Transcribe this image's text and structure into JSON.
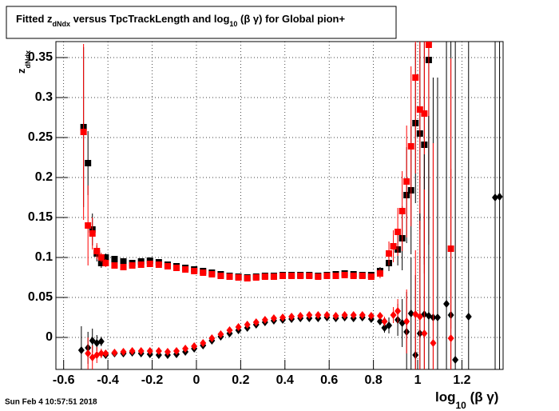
{
  "chart_data": {
    "type": "scatter",
    "title_parts": [
      "Fitted  z",
      "dNdx",
      "  versus TpcTrackLength and log",
      "10",
      " (β γ) for Global pion+"
    ],
    "y_label_parts": [
      "z",
      "dNdx"
    ],
    "x_label_parts": [
      "log",
      "10",
      " (β γ)"
    ],
    "timestamp": "Sun Feb  4 10:57:51 2018",
    "xlim": [
      -0.635,
      1.386
    ],
    "ylim": [
      -0.04,
      0.37
    ],
    "xticks": [
      -0.6,
      -0.4,
      -0.2,
      0,
      0.2,
      0.4,
      0.6,
      0.8,
      1,
      1.2
    ],
    "yticks": [
      0,
      0.05,
      0.1,
      0.15,
      0.2,
      0.25,
      0.3,
      0.35
    ],
    "grid": true,
    "series": [
      {
        "color": "#000000",
        "marker": "square",
        "x": [
          -0.51,
          -0.49,
          -0.47,
          -0.45,
          -0.43,
          -0.41,
          -0.37,
          -0.33,
          -0.29,
          -0.25,
          -0.21,
          -0.17,
          -0.13,
          -0.09,
          -0.05,
          -0.01,
          0.03,
          0.07,
          0.11,
          0.15,
          0.19,
          0.23,
          0.27,
          0.31,
          0.35,
          0.39,
          0.43,
          0.47,
          0.51,
          0.55,
          0.59,
          0.63,
          0.67,
          0.71,
          0.75,
          0.79,
          0.83,
          0.87,
          0.91,
          0.93,
          0.95,
          0.97,
          0.99,
          1.01,
          1.03,
          1.05
        ],
        "values": [
          0.263,
          0.218,
          0.135,
          0.105,
          0.093,
          0.1,
          0.098,
          0.095,
          0.093,
          0.095,
          0.096,
          0.094,
          0.091,
          0.089,
          0.087,
          0.085,
          0.083,
          0.081,
          0.079,
          0.077,
          0.076,
          0.075,
          0.076,
          0.077,
          0.077,
          0.078,
          0.078,
          0.078,
          0.078,
          0.077,
          0.078,
          0.079,
          0.08,
          0.079,
          0.078,
          0.078,
          0.083,
          0.093,
          0.11,
          0.124,
          0.178,
          0.184,
          0.268,
          0.255,
          0.241,
          0.347
        ],
        "errors": [
          0.1,
          0.04,
          0.02,
          0.01,
          0.006,
          0.005,
          0.004,
          0.003,
          0.003,
          0.003,
          0.003,
          0.002,
          0.002,
          0.002,
          0.002,
          0.002,
          0.002,
          0.002,
          0.002,
          0.002,
          0.002,
          0.002,
          0.002,
          0.002,
          0.002,
          0.002,
          0.002,
          0.002,
          0.002,
          0.002,
          0.002,
          0.002,
          0.002,
          0.002,
          0.003,
          0.004,
          0.005,
          0.01,
          0.02,
          0.04,
          0.06,
          0.08,
          0.1,
          0.12,
          0.15,
          0.2
        ]
      },
      {
        "color": "#ff0000",
        "marker": "square",
        "x": [
          -0.51,
          -0.49,
          -0.47,
          -0.45,
          -0.43,
          -0.41,
          -0.37,
          -0.33,
          -0.29,
          -0.25,
          -0.21,
          -0.17,
          -0.13,
          -0.09,
          -0.05,
          -0.01,
          0.03,
          0.07,
          0.11,
          0.15,
          0.19,
          0.23,
          0.27,
          0.31,
          0.35,
          0.39,
          0.43,
          0.47,
          0.51,
          0.55,
          0.59,
          0.63,
          0.67,
          0.71,
          0.75,
          0.79,
          0.83,
          0.87,
          0.89,
          0.91,
          0.93,
          0.95,
          0.97,
          0.99,
          1.01,
          1.03,
          1.05,
          1.15
        ],
        "values": [
          0.257,
          0.14,
          0.13,
          0.108,
          0.1,
          0.093,
          0.09,
          0.088,
          0.09,
          0.091,
          0.092,
          0.091,
          0.089,
          0.087,
          0.085,
          0.083,
          0.081,
          0.079,
          0.077,
          0.076,
          0.075,
          0.074,
          0.075,
          0.076,
          0.076,
          0.077,
          0.077,
          0.077,
          0.077,
          0.076,
          0.077,
          0.077,
          0.078,
          0.077,
          0.077,
          0.076,
          0.08,
          0.105,
          0.114,
          0.132,
          0.158,
          0.195,
          0.239,
          0.325,
          0.285,
          0.28,
          0.366,
          0.111
        ],
        "errors": [
          0.11,
          0.05,
          0.02,
          0.01,
          0.006,
          0.005,
          0.004,
          0.003,
          0.003,
          0.003,
          0.003,
          0.002,
          0.002,
          0.002,
          0.002,
          0.002,
          0.002,
          0.002,
          0.002,
          0.002,
          0.002,
          0.002,
          0.002,
          0.002,
          0.002,
          0.002,
          0.002,
          0.002,
          0.002,
          0.002,
          0.002,
          0.002,
          0.002,
          0.002,
          0.003,
          0.004,
          0.006,
          0.015,
          0.02,
          0.03,
          0.05,
          0.07,
          0.1,
          0.12,
          0.15,
          0.2,
          0.25,
          0.1
        ]
      },
      {
        "color": "#000000",
        "marker": "diamond",
        "x": [
          -0.52,
          -0.49,
          -0.47,
          -0.45,
          -0.43,
          -0.41,
          -0.37,
          -0.33,
          -0.29,
          -0.25,
          -0.21,
          -0.17,
          -0.13,
          -0.09,
          -0.05,
          -0.01,
          0.03,
          0.07,
          0.11,
          0.15,
          0.19,
          0.23,
          0.27,
          0.31,
          0.35,
          0.39,
          0.43,
          0.47,
          0.51,
          0.55,
          0.59,
          0.63,
          0.67,
          0.71,
          0.75,
          0.79,
          0.83,
          0.85,
          0.87,
          0.91,
          0.93,
          0.95,
          0.97,
          0.99,
          1.01,
          1.03,
          1.05,
          1.07,
          1.09,
          1.13,
          1.15,
          1.17,
          1.23,
          1.35,
          1.37
        ],
        "values": [
          -0.016,
          -0.013,
          -0.004,
          -0.007,
          -0.005,
          -0.022,
          -0.02,
          -0.02,
          -0.019,
          -0.02,
          -0.021,
          -0.022,
          -0.022,
          -0.021,
          -0.018,
          -0.014,
          -0.01,
          -0.004,
          0.001,
          0.005,
          0.009,
          0.012,
          0.016,
          0.019,
          0.021,
          0.022,
          0.023,
          0.024,
          0.024,
          0.024,
          0.025,
          0.024,
          0.025,
          0.024,
          0.025,
          0.023,
          0.02,
          0.012,
          0.015,
          0.022,
          0.018,
          0.007,
          0.03,
          -0.022,
          0.005,
          0.029,
          0.027,
          0.025,
          0.025,
          0.042,
          0.028,
          -0.028,
          0.026,
          0.175,
          0.176
        ],
        "errors": [
          0.03,
          0.02,
          0.015,
          0.01,
          0.006,
          0.004,
          0.003,
          0.003,
          0.002,
          0.002,
          0.002,
          0.002,
          0.002,
          0.002,
          0.002,
          0.002,
          0.002,
          0.002,
          0.002,
          0.002,
          0.002,
          0.002,
          0.002,
          0.002,
          0.002,
          0.002,
          0.002,
          0.002,
          0.002,
          0.002,
          0.002,
          0.002,
          0.002,
          0.002,
          0.002,
          0.003,
          0.004,
          0.006,
          0.01,
          0.02,
          0.03,
          0.05,
          0.07,
          0.1,
          0.15,
          0.2,
          0.25,
          0.3,
          0.3,
          0.35,
          0.35,
          0.4,
          0.4,
          0.4,
          0.4
        ]
      },
      {
        "color": "#ff0000",
        "marker": "diamond",
        "x": [
          -0.49,
          -0.47,
          -0.45,
          -0.43,
          -0.41,
          -0.37,
          -0.33,
          -0.29,
          -0.25,
          -0.21,
          -0.17,
          -0.13,
          -0.09,
          -0.05,
          -0.01,
          0.03,
          0.07,
          0.11,
          0.15,
          0.19,
          0.23,
          0.27,
          0.31,
          0.35,
          0.39,
          0.43,
          0.47,
          0.51,
          0.55,
          0.59,
          0.63,
          0.67,
          0.71,
          0.75,
          0.79,
          0.83,
          0.85,
          0.89,
          0.91,
          0.95,
          0.99,
          1.01,
          1.03,
          1.07,
          1.15
        ],
        "values": [
          -0.02,
          -0.025,
          -0.022,
          -0.02,
          -0.02,
          -0.019,
          -0.018,
          -0.017,
          -0.017,
          -0.017,
          -0.017,
          -0.018,
          -0.017,
          -0.014,
          -0.011,
          -0.007,
          -0.001,
          0.004,
          0.009,
          0.013,
          0.016,
          0.019,
          0.022,
          0.024,
          0.025,
          0.026,
          0.027,
          0.028,
          0.028,
          0.028,
          0.027,
          0.028,
          0.028,
          0.028,
          0.027,
          0.027,
          0.02,
          0.028,
          0.033,
          0.02,
          0.029,
          0.026,
          0.005,
          -0.007,
          -0.001
        ],
        "errors": [
          0.02,
          0.015,
          0.01,
          0.006,
          0.004,
          0.003,
          0.003,
          0.002,
          0.002,
          0.002,
          0.002,
          0.002,
          0.002,
          0.002,
          0.002,
          0.002,
          0.002,
          0.002,
          0.002,
          0.002,
          0.002,
          0.002,
          0.002,
          0.002,
          0.002,
          0.002,
          0.002,
          0.002,
          0.002,
          0.002,
          0.002,
          0.002,
          0.002,
          0.002,
          0.003,
          0.004,
          0.006,
          0.01,
          0.015,
          0.04,
          0.08,
          0.12,
          0.18,
          0.25,
          0.35
        ]
      }
    ]
  }
}
